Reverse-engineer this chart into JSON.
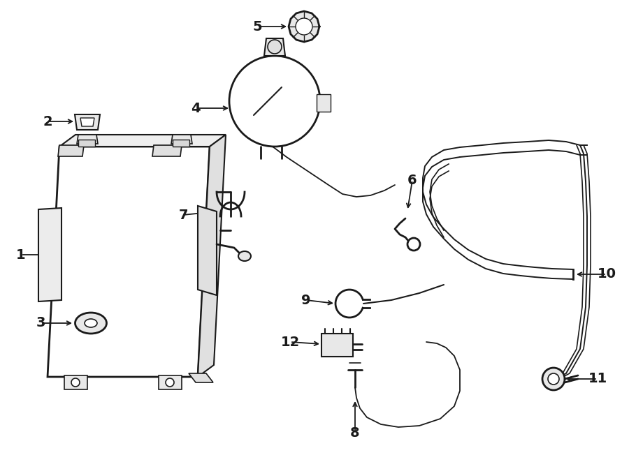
{
  "background_color": "#ffffff",
  "line_color": "#1a1a1a",
  "label_color": "#000000",
  "fig_width": 9.0,
  "fig_height": 6.62,
  "dpi": 100
}
